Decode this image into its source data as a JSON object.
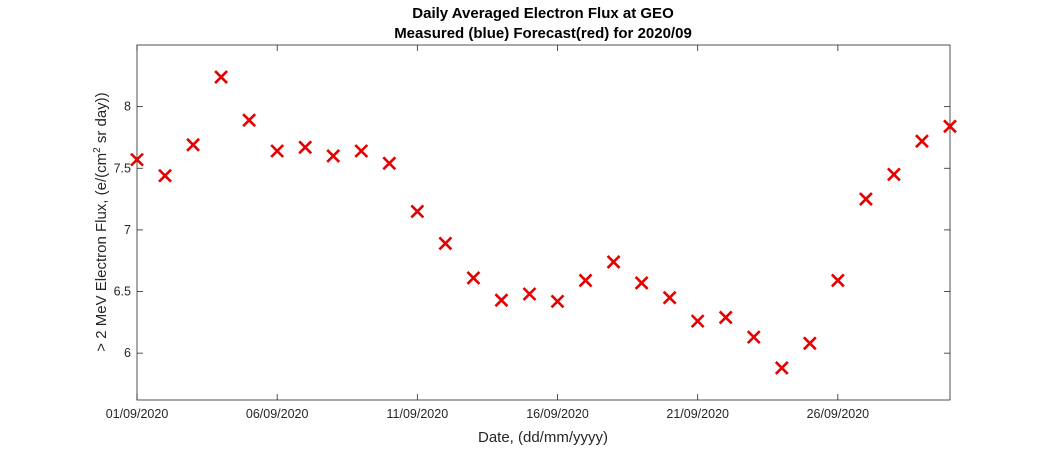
{
  "chart_data": {
    "type": "scatter",
    "title": "Daily Averaged Electron Flux at GEO",
    "subtitle": "Measured (blue) Forecast(red) for 2020/09",
    "xlabel": "Date, (dd/mm/yyyy)",
    "ylabel_parts": [
      "> 2 MeV Electron Flux, (e/(cm",
      "2",
      " sr day))"
    ],
    "x_tick_labels": [
      "01/09/2020",
      "06/09/2020",
      "11/09/2020",
      "16/09/2020",
      "21/09/2020",
      "26/09/2020"
    ],
    "x_ticks": [
      "2020-09-01",
      "2020-09-06",
      "2020-09-11",
      "2020-09-16",
      "2020-09-21",
      "2020-09-26"
    ],
    "xlim": [
      "2020-09-01",
      "2020-09-30"
    ],
    "y_tick_labels": [
      "6",
      "6.5",
      "7",
      "7.5",
      "8"
    ],
    "y_ticks": [
      6,
      6.5,
      7,
      7.5,
      8
    ],
    "ylim": [
      5.62,
      8.5
    ],
    "grid": false,
    "series": [
      {
        "color": "#e60000",
        "marker": "x",
        "points": [
          {
            "x": "2020-09-01",
            "y": 7.57
          },
          {
            "x": "2020-09-02",
            "y": 7.44
          },
          {
            "x": "2020-09-03",
            "y": 7.69
          },
          {
            "x": "2020-09-04",
            "y": 8.24
          },
          {
            "x": "2020-09-05",
            "y": 7.89
          },
          {
            "x": "2020-09-06",
            "y": 7.64
          },
          {
            "x": "2020-09-07",
            "y": 7.67
          },
          {
            "x": "2020-09-08",
            "y": 7.6
          },
          {
            "x": "2020-09-09",
            "y": 7.64
          },
          {
            "x": "2020-09-10",
            "y": 7.54
          },
          {
            "x": "2020-09-11",
            "y": 7.15
          },
          {
            "x": "2020-09-12",
            "y": 6.89
          },
          {
            "x": "2020-09-13",
            "y": 6.61
          },
          {
            "x": "2020-09-14",
            "y": 6.43
          },
          {
            "x": "2020-09-15",
            "y": 6.48
          },
          {
            "x": "2020-09-16",
            "y": 6.42
          },
          {
            "x": "2020-09-17",
            "y": 6.59
          },
          {
            "x": "2020-09-18",
            "y": 6.74
          },
          {
            "x": "2020-09-19",
            "y": 6.57
          },
          {
            "x": "2020-09-20",
            "y": 6.45
          },
          {
            "x": "2020-09-21",
            "y": 6.26
          },
          {
            "x": "2020-09-22",
            "y": 6.29
          },
          {
            "x": "2020-09-23",
            "y": 6.13
          },
          {
            "x": "2020-09-24",
            "y": 5.88
          },
          {
            "x": "2020-09-25",
            "y": 6.08
          },
          {
            "x": "2020-09-26",
            "y": 6.59
          },
          {
            "x": "2020-09-27",
            "y": 7.25
          },
          {
            "x": "2020-09-28",
            "y": 7.45
          },
          {
            "x": "2020-09-29",
            "y": 7.72
          },
          {
            "x": "2020-09-30",
            "y": 7.84
          }
        ]
      }
    ]
  }
}
